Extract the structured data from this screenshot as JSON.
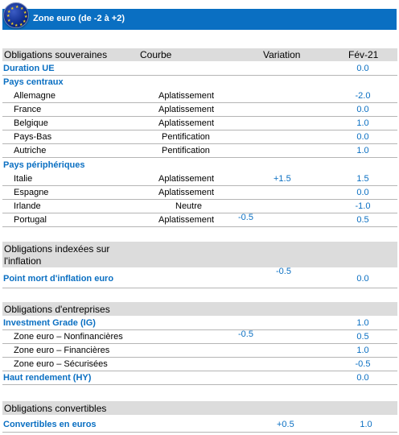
{
  "banner": {
    "title": "Zone euro (de -2 à +2)",
    "flag_icon": "eu-flag-icon"
  },
  "header": {
    "col1": "Obligations souveraines",
    "col2": "Courbe",
    "col3": "Variation",
    "col4": "Fév-21"
  },
  "duration": {
    "label": "Duration UE",
    "value": "0.0"
  },
  "core": {
    "label": "Pays centraux",
    "rows": [
      {
        "name": "Allemagne",
        "curve": "Aplatissement",
        "variation": "",
        "value": "-2.0"
      },
      {
        "name": "France",
        "curve": "Aplatissement",
        "variation": "",
        "value": "0.0"
      },
      {
        "name": "Belgique",
        "curve": "Aplatissement",
        "variation": "",
        "value": "1.0"
      },
      {
        "name": "Pays-Bas",
        "curve": "Pentification",
        "variation": "",
        "value": "0.0"
      },
      {
        "name": "Autriche",
        "curve": "Pentification",
        "variation": "",
        "value": "1.0"
      }
    ]
  },
  "periphery": {
    "label": "Pays périphériques",
    "rows": [
      {
        "name": "Italie",
        "curve": "Aplatissement",
        "variation": "+1.5",
        "value": "1.5"
      },
      {
        "name": "Espagne",
        "curve": "Aplatissement",
        "variation": "",
        "value": "0.0"
      },
      {
        "name": "Irlande",
        "curve": "Neutre",
        "variation": "",
        "value": "-1.0"
      },
      {
        "name": "Portugal",
        "curve": "Aplatissement",
        "variation": "-0.5",
        "value": "0.5"
      }
    ]
  },
  "inflation": {
    "header_line1": "Obligations indexées sur",
    "header_line2": "l'inflation",
    "label": "Point mort d'inflation euro",
    "variation": "-0.5",
    "value": "0.0"
  },
  "corporate": {
    "header": "Obligations d'entreprises",
    "ig": {
      "label": "Investment Grade (IG)",
      "value": "1.0"
    },
    "rows": [
      {
        "name": "Zone euro – Nonfinancières",
        "variation": "-0.5",
        "value": "0.5"
      },
      {
        "name": "Zone euro – Financières",
        "variation": "",
        "value": "1.0"
      },
      {
        "name": "Zone euro – Sécurisées",
        "variation": "",
        "value": "-0.5"
      }
    ],
    "hy": {
      "label": "Haut rendement (HY)",
      "value": "0.0"
    }
  },
  "convertibles": {
    "header": "Obligations convertibles",
    "label": "Convertibles en euros",
    "variation": "+0.5",
    "value": "1.0"
  }
}
